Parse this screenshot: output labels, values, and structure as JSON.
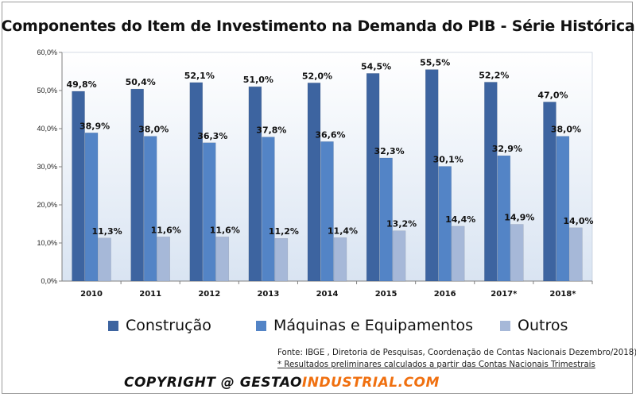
{
  "colors": {
    "construcao": "#3d64a0",
    "maquinas": "#5384c6",
    "outros": "#a6b8d8",
    "plot_bg_top": "#ffffff",
    "plot_bg_bottom": "#d9e4f2",
    "brand_orange": "#f07010"
  },
  "chart_data": {
    "type": "bar",
    "title": "Componentes do Item de Investimento na Demanda do PIB - Série Histórica",
    "categories": [
      "2010",
      "2011",
      "2012",
      "2013",
      "2014",
      "2015",
      "2016",
      "2017*",
      "2018*"
    ],
    "series": [
      {
        "name": "Construção",
        "color_key": "construcao",
        "values": [
          49.8,
          50.4,
          52.1,
          51.0,
          52.0,
          54.5,
          55.5,
          52.2,
          47.0
        ],
        "labels": [
          "49,8%",
          "50,4%",
          "52,1%",
          "51,0%",
          "52,0%",
          "54,5%",
          "55,5%",
          "52,2%",
          "47,0%"
        ]
      },
      {
        "name": "Máquinas e Equipamentos",
        "color_key": "maquinas",
        "values": [
          38.9,
          38.0,
          36.3,
          37.8,
          36.6,
          32.3,
          30.1,
          32.9,
          38.0
        ],
        "labels": [
          "38,9%",
          "38,0%",
          "36,3%",
          "37,8%",
          "36,6%",
          "32,3%",
          "30,1%",
          "32,9%",
          "38,0%"
        ]
      },
      {
        "name": "Outros",
        "color_key": "outros",
        "values": [
          11.3,
          11.6,
          11.6,
          11.2,
          11.4,
          13.2,
          14.4,
          14.9,
          14.0
        ],
        "labels": [
          "11,3%",
          "11,6%",
          "11,6%",
          "11,2%",
          "11,4%",
          "13,2%",
          "14,4%",
          "14,9%",
          "14,0%"
        ]
      }
    ],
    "ylim": [
      0,
      60
    ],
    "yticks": [
      0,
      10,
      20,
      30,
      40,
      50,
      60
    ],
    "ytick_labels": [
      "0,0%",
      "10,0%",
      "20,0%",
      "30,0%",
      "40,0%",
      "50,0%",
      "60,0%"
    ],
    "xlabel": "",
    "ylabel": "",
    "grid": false,
    "legend_position": "bottom"
  },
  "source": {
    "line1": "Fonte: IBGE , Diretoria de Pesquisas,  Coordenação de Contas Nacionais Dezembro/2018)",
    "line2": "* Resultados preliminares calculados a partir das Contas Nacionais Trimestrais"
  },
  "copyright": {
    "prefix": "COPYRIGHT @ ",
    "brand_part1": "GESTAO",
    "brand_part2": "INDUSTRIAL.COM"
  }
}
